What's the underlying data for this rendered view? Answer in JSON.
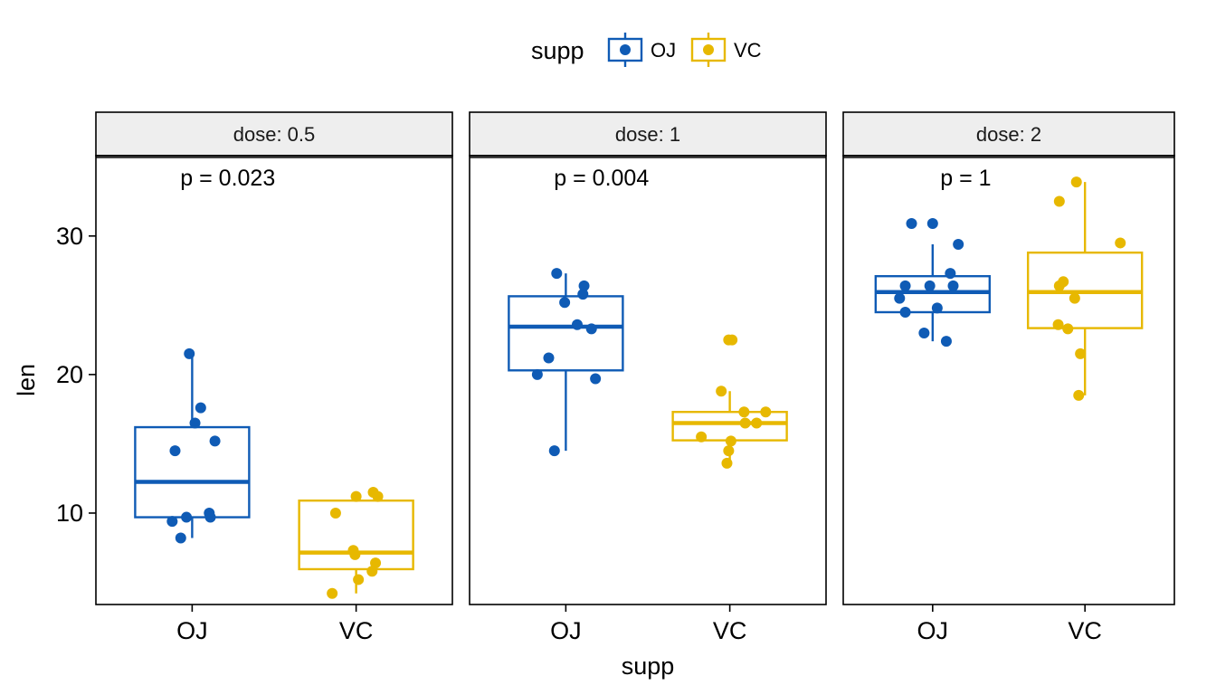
{
  "chart_data": {
    "type": "box",
    "x_axis_title": "supp",
    "y_axis_title": "len",
    "y_ticks": [
      10,
      20,
      30
    ],
    "ylim": [
      3.4,
      35.8
    ],
    "grid": false,
    "legend": {
      "position": "top",
      "title": "supp",
      "items": [
        {
          "label": "OJ",
          "color": "#0F5BB5"
        },
        {
          "label": "VC",
          "color": "#E7B800"
        }
      ]
    },
    "facets": [
      {
        "strip": "dose: 0.5",
        "p_label": "p = 0.023",
        "boxes": [
          {
            "group": "OJ",
            "color": "#0F5BB5",
            "lower_whisker": 8.2,
            "q1": 9.7,
            "median": 12.25,
            "q3": 16.2,
            "upper_whisker": 21.5,
            "points": [
              [
                -0.35,
                9.4
              ],
              [
                -0.2,
                8.2
              ],
              [
                -0.1,
                9.7
              ],
              [
                0.05,
                16.5
              ],
              [
                -0.3,
                14.5
              ],
              [
                0.15,
                17.6
              ],
              [
                0.3,
                10.0
              ],
              [
                0.32,
                9.7
              ],
              [
                0.4,
                15.2
              ],
              [
                -0.05,
                21.5
              ]
            ]
          },
          {
            "group": "VC",
            "color": "#E7B800",
            "lower_whisker": 4.2,
            "q1": 5.95,
            "median": 7.15,
            "q3": 10.9,
            "upper_whisker": 11.5,
            "points": [
              [
                -0.42,
                4.2
              ],
              [
                -0.36,
                10.0
              ],
              [
                0.0,
                11.2
              ],
              [
                0.3,
                11.5
              ],
              [
                0.38,
                11.2
              ],
              [
                -0.05,
                7.3
              ],
              [
                -0.02,
                7.0
              ],
              [
                0.28,
                5.8
              ],
              [
                0.34,
                6.4
              ],
              [
                0.04,
                5.2
              ]
            ]
          }
        ]
      },
      {
        "strip": "dose: 1",
        "p_label": "p = 0.004",
        "boxes": [
          {
            "group": "OJ",
            "color": "#0F5BB5",
            "lower_whisker": 14.5,
            "q1": 20.3,
            "median": 23.45,
            "q3": 25.65,
            "upper_whisker": 27.3,
            "points": [
              [
                -0.16,
                27.3
              ],
              [
                0.32,
                26.4
              ],
              [
                0.3,
                25.8
              ],
              [
                -0.02,
                25.2
              ],
              [
                0.2,
                23.6
              ],
              [
                0.45,
                23.3
              ],
              [
                -0.3,
                21.2
              ],
              [
                -0.5,
                20.0
              ],
              [
                0.52,
                19.7
              ],
              [
                -0.2,
                14.5
              ]
            ]
          },
          {
            "group": "VC",
            "color": "#E7B800",
            "lower_whisker": 13.6,
            "q1": 15.25,
            "median": 16.5,
            "q3": 17.3,
            "upper_whisker": 18.8,
            "points": [
              [
                -0.02,
                22.5
              ],
              [
                0.04,
                22.5
              ],
              [
                -0.15,
                18.8
              ],
              [
                0.25,
                17.3
              ],
              [
                0.63,
                17.3
              ],
              [
                0.47,
                16.5
              ],
              [
                0.27,
                16.5
              ],
              [
                -0.5,
                15.5
              ],
              [
                0.02,
                15.2
              ],
              [
                -0.02,
                14.5
              ],
              [
                -0.05,
                13.6
              ]
            ]
          }
        ]
      },
      {
        "strip": "dose: 2",
        "p_label": "p = 1",
        "boxes": [
          {
            "group": "OJ",
            "color": "#0F5BB5",
            "lower_whisker": 22.4,
            "q1": 24.5,
            "median": 25.95,
            "q3": 27.1,
            "upper_whisker": 29.4,
            "points": [
              [
                -0.37,
                30.9
              ],
              [
                0.0,
                30.9
              ],
              [
                0.45,
                29.4
              ],
              [
                0.31,
                27.3
              ],
              [
                -0.48,
                26.4
              ],
              [
                -0.05,
                26.4
              ],
              [
                0.36,
                26.4
              ],
              [
                -0.58,
                25.5
              ],
              [
                0.08,
                24.8
              ],
              [
                -0.48,
                24.5
              ],
              [
                -0.15,
                23.0
              ],
              [
                0.24,
                22.4
              ]
            ]
          },
          {
            "group": "VC",
            "color": "#E7B800",
            "lower_whisker": 18.5,
            "q1": 23.35,
            "median": 25.95,
            "q3": 28.8,
            "upper_whisker": 33.9,
            "points": [
              [
                -0.15,
                33.9
              ],
              [
                -0.45,
                32.5
              ],
              [
                0.62,
                29.5
              ],
              [
                -0.38,
                26.7
              ],
              [
                -0.45,
                26.4
              ],
              [
                -0.18,
                25.5
              ],
              [
                -0.47,
                23.6
              ],
              [
                -0.3,
                23.3
              ],
              [
                -0.08,
                21.5
              ],
              [
                -0.11,
                18.5
              ]
            ]
          }
        ]
      }
    ]
  }
}
